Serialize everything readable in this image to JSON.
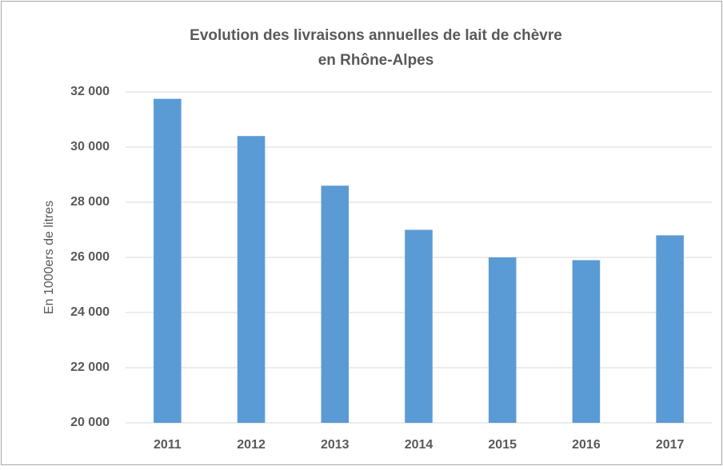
{
  "chart_data": {
    "type": "bar",
    "title": [
      "Evolution des livraisons annuelles de lait de chèvre",
      "en Rhône-Alpes"
    ],
    "y_label": "En 1000ers de litres",
    "categories": [
      "2011",
      "2012",
      "2013",
      "2014",
      "2015",
      "2016",
      "2017"
    ],
    "values": [
      31750,
      30400,
      28600,
      27000,
      26000,
      25900,
      26800
    ],
    "color": "#5b9bd5",
    "ylim": [
      20000,
      32000
    ],
    "yticks": [
      {
        "value": 20000,
        "label": "20 000"
      },
      {
        "value": 22000,
        "label": "22 000"
      },
      {
        "value": 24000,
        "label": "24 000"
      },
      {
        "value": 26000,
        "label": "26 000"
      },
      {
        "value": 28000,
        "label": "28 000"
      },
      {
        "value": 30000,
        "label": "30 000"
      },
      {
        "value": 32000,
        "label": "32 000"
      }
    ],
    "grid": true
  }
}
